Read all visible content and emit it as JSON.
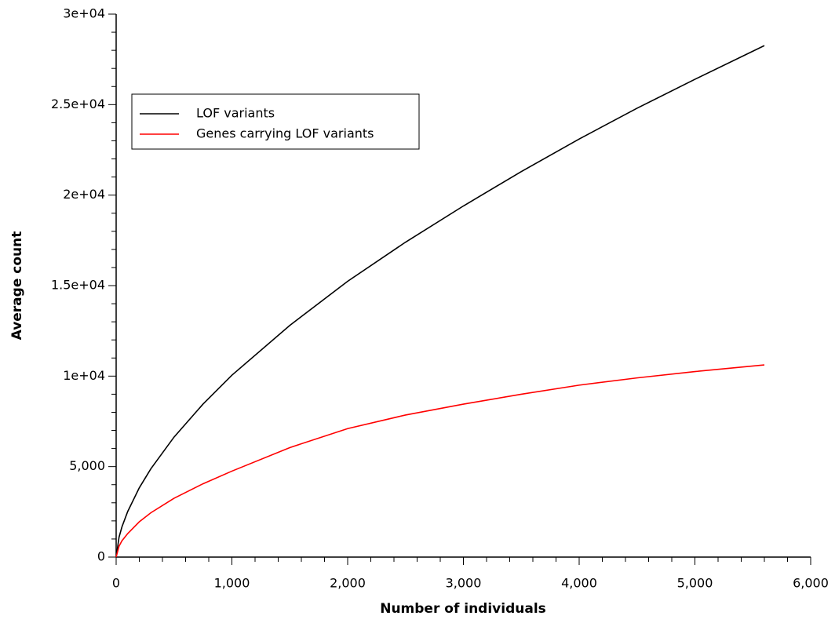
{
  "chart_data": {
    "type": "line",
    "xlabel": "Number of individuals",
    "ylabel": "Average count",
    "x": [
      0,
      25,
      50,
      100,
      200,
      300,
      500,
      750,
      1000,
      1500,
      2000,
      2500,
      3000,
      3500,
      4000,
      4500,
      5000,
      5600
    ],
    "series": [
      {
        "name": "LOF variants",
        "color": "#000000",
        "values": [
          0,
          1100,
          1670,
          2520,
          3830,
          4880,
          6630,
          8450,
          10050,
          12800,
          15240,
          17400,
          19400,
          21300,
          23100,
          24800,
          26400,
          28260
        ]
      },
      {
        "name": "Genes carrying LOF variants",
        "color": "#ff0000",
        "values": [
          0,
          600,
          900,
          1300,
          1950,
          2450,
          3250,
          4050,
          4750,
          6050,
          7100,
          7850,
          8450,
          9000,
          9500,
          9900,
          10250,
          10620
        ]
      }
    ],
    "xlim": [
      0,
      6000
    ],
    "xticks": [
      0,
      {
        "value": 1000,
        "label": "1,000"
      },
      {
        "value": 2000,
        "label": "2,000"
      },
      {
        "value": 3000,
        "label": "3,000"
      },
      {
        "value": 4000,
        "label": "4,000"
      },
      {
        "value": 5000,
        "label": "5,000"
      },
      {
        "value": 6000,
        "label": "6,000"
      }
    ],
    "xminorticks": [
      200,
      400,
      600,
      800,
      1200,
      1400,
      1600,
      1800,
      2200,
      2400,
      2600,
      2800,
      3200,
      3400,
      3600,
      3800,
      4200,
      4400,
      4600,
      4800,
      5200,
      5400,
      5600,
      5800
    ],
    "ylim": [
      0,
      30000
    ],
    "yticks": [
      0,
      {
        "value": 5000,
        "label": "5,000"
      },
      {
        "value": 10000,
        "label": "1e+04"
      },
      {
        "value": 15000,
        "label": "1.5e+04"
      },
      {
        "value": 20000,
        "label": "2e+04"
      },
      {
        "value": 25000,
        "label": "2.5e+04"
      },
      {
        "value": 30000,
        "label": "3e+04"
      }
    ],
    "yminorticks": [
      1000,
      2000,
      3000,
      4000,
      6000,
      7000,
      8000,
      9000,
      11000,
      12000,
      13000,
      14000,
      16000,
      17000,
      18000,
      19000,
      21000,
      22000,
      23000,
      24000,
      26000,
      27000,
      28000,
      29000
    ],
    "legend": "upper left"
  }
}
